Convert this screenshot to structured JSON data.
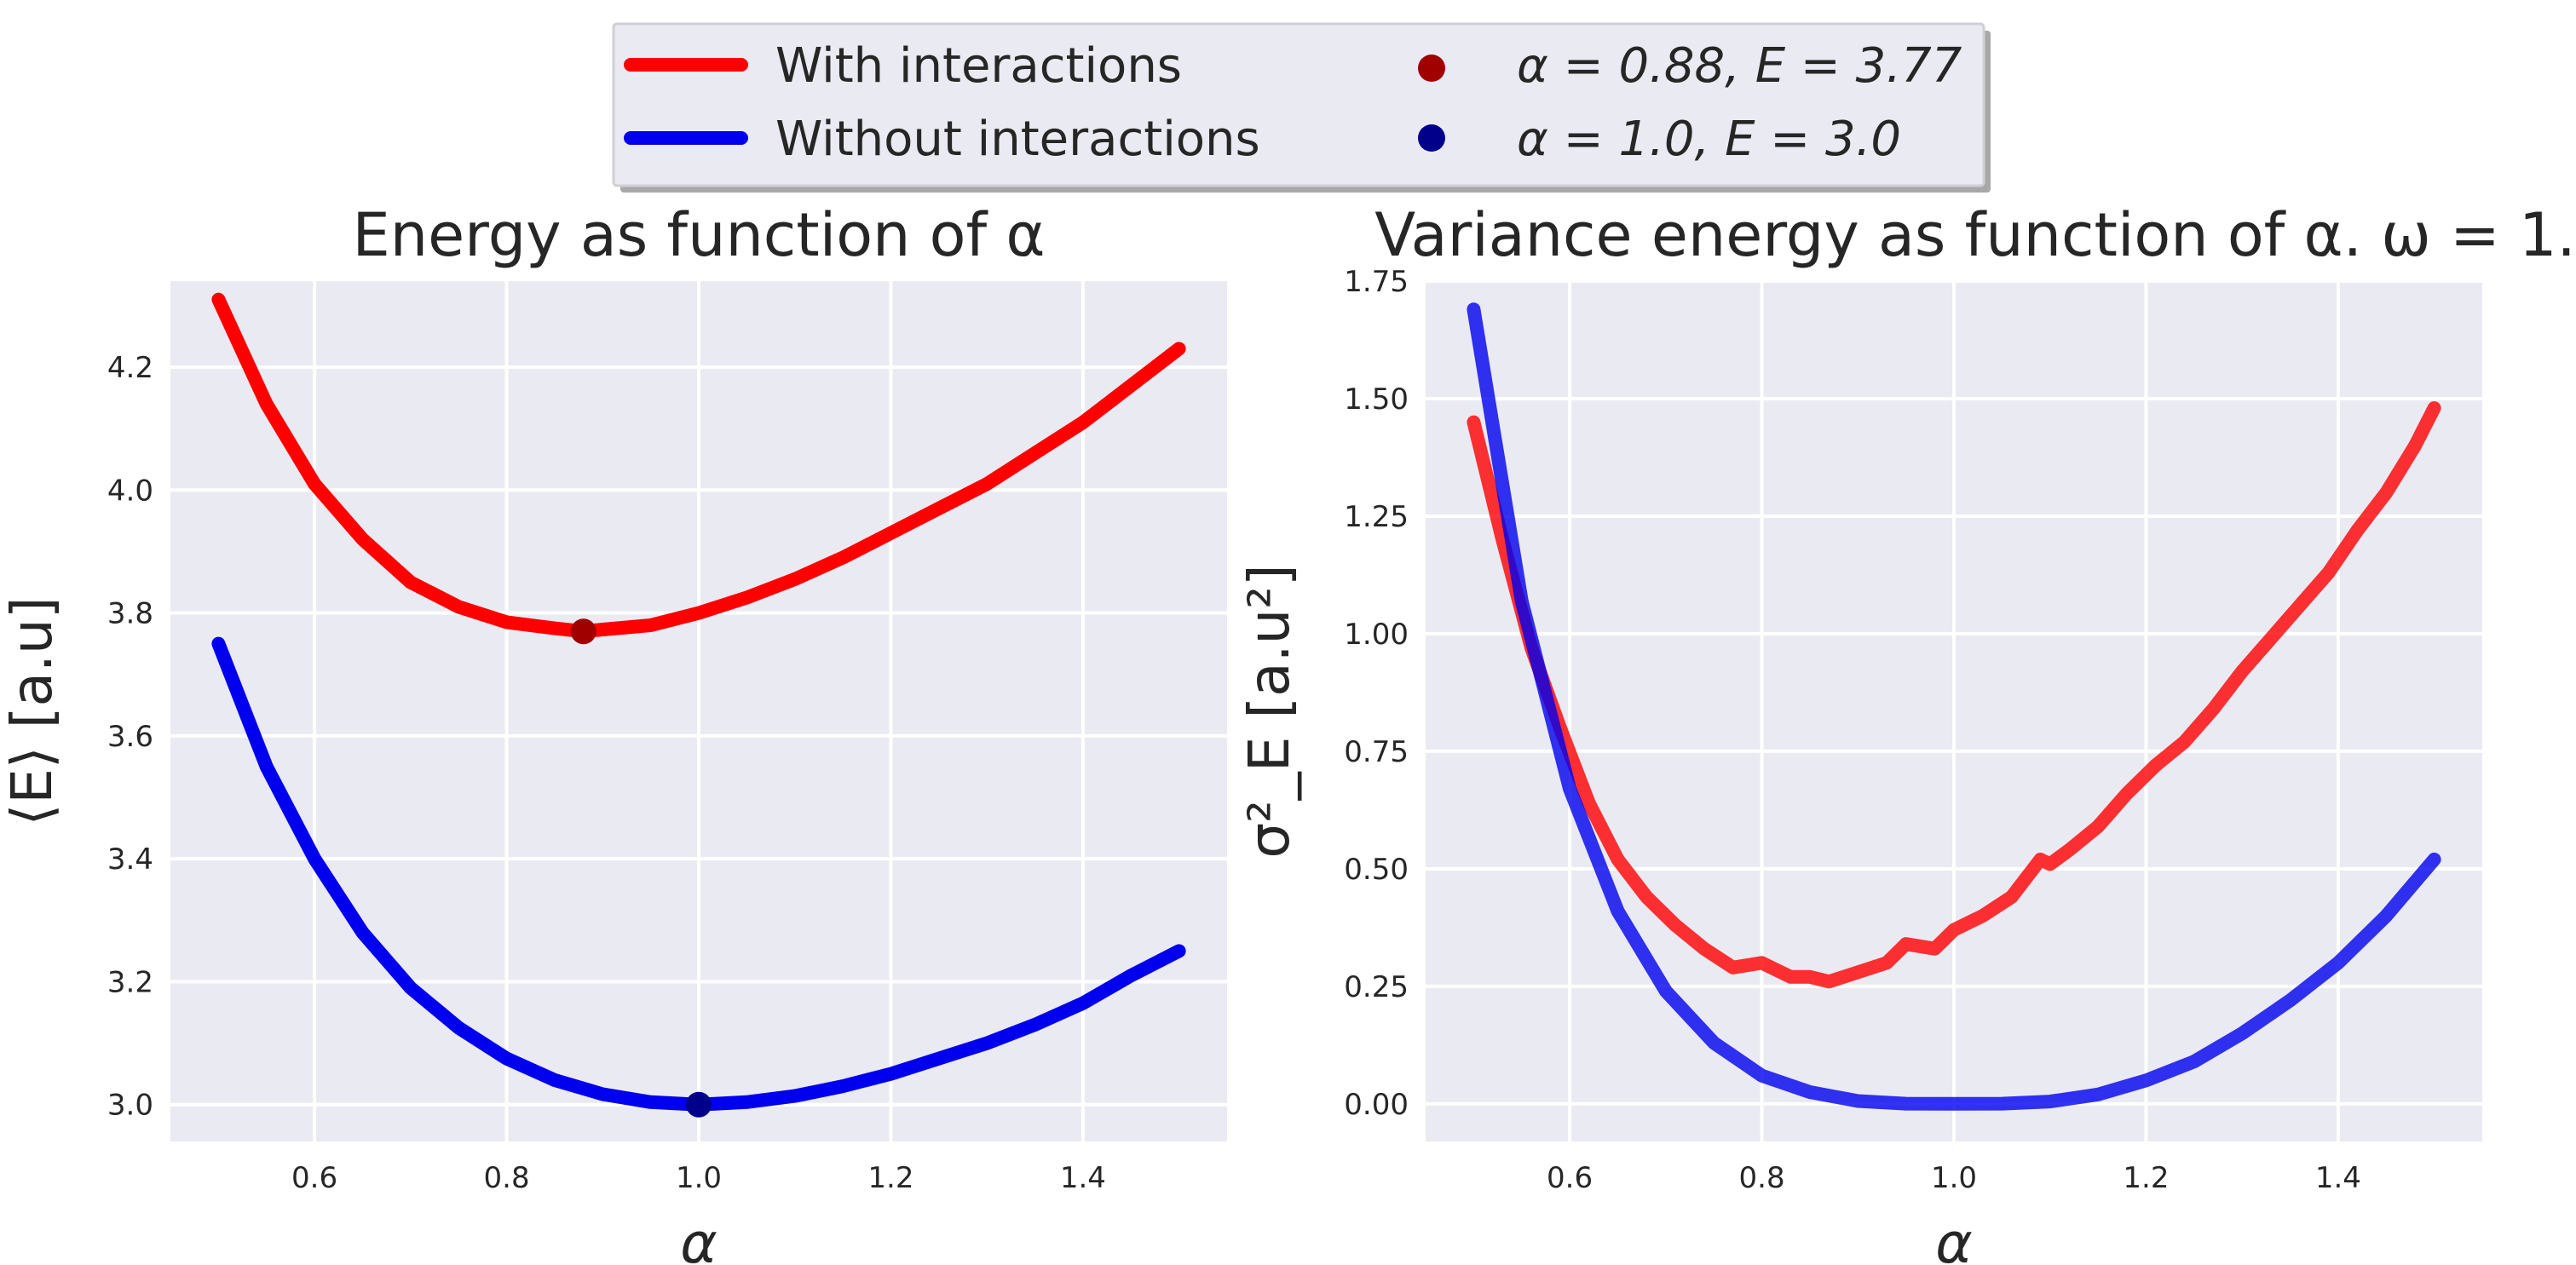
{
  "colors": {
    "with_interactions": "#ff0000",
    "without_interactions": "#0000ee",
    "min_with": "#a00000",
    "min_without": "#00008b",
    "panel_bg": "#eaeaf2",
    "grid": "#ffffff"
  },
  "legend": {
    "placement": "top-center",
    "entries": [
      {
        "label": "With interactions",
        "marker": "line",
        "color_key": "with_interactions"
      },
      {
        "label": "Without interactions",
        "marker": "line",
        "color_key": "without_interactions"
      },
      {
        "label": "α = 0.88, E = 3.77",
        "marker": "dot",
        "color_key": "min_with"
      },
      {
        "label": "α = 1.0, E = 3.0",
        "marker": "dot",
        "color_key": "min_without"
      }
    ]
  },
  "chart_data": [
    {
      "type": "line",
      "title": "Energy as function of α",
      "xlabel": "α",
      "ylabel": "⟨E⟩ [a.u]",
      "xlim": [
        0.45,
        1.55
      ],
      "ylim": [
        2.94,
        4.34
      ],
      "xticks": [
        0.6,
        0.8,
        1.0,
        1.2,
        1.4
      ],
      "xtick_labels": [
        "0.6",
        "0.8",
        "1.0",
        "1.2",
        "1.4"
      ],
      "yticks": [
        3.0,
        3.2,
        3.4,
        3.6,
        3.8,
        4.0,
        4.2
      ],
      "ytick_labels": [
        "3.0",
        "3.2",
        "3.4",
        "3.6",
        "3.8",
        "4.0",
        "4.2"
      ],
      "grid": true,
      "series": [
        {
          "name": "With interactions",
          "color_key": "with_interactions",
          "x": [
            0.5,
            0.55,
            0.6,
            0.65,
            0.7,
            0.75,
            0.8,
            0.85,
            0.88,
            0.9,
            0.95,
            1.0,
            1.05,
            1.1,
            1.15,
            1.2,
            1.25,
            1.3,
            1.35,
            1.4,
            1.45,
            1.5
          ],
          "y": [
            4.31,
            4.14,
            4.01,
            3.92,
            3.85,
            3.81,
            3.785,
            3.775,
            3.77,
            3.773,
            3.78,
            3.8,
            3.825,
            3.855,
            3.89,
            3.93,
            3.97,
            4.01,
            4.06,
            4.11,
            4.17,
            4.23
          ]
        },
        {
          "name": "Without interactions",
          "color_key": "without_interactions",
          "x": [
            0.5,
            0.55,
            0.6,
            0.65,
            0.7,
            0.75,
            0.8,
            0.85,
            0.9,
            0.95,
            1.0,
            1.05,
            1.1,
            1.15,
            1.2,
            1.25,
            1.3,
            1.35,
            1.4,
            1.45,
            1.5
          ],
          "y": [
            3.75,
            3.55,
            3.4,
            3.28,
            3.19,
            3.125,
            3.075,
            3.04,
            3.017,
            3.004,
            3.0,
            3.004,
            3.014,
            3.03,
            3.05,
            3.075,
            3.1,
            3.13,
            3.165,
            3.21,
            3.25
          ]
        }
      ],
      "points": [
        {
          "x": 0.88,
          "y": 3.77,
          "color_key": "min_with"
        },
        {
          "x": 1.0,
          "y": 3.0,
          "color_key": "min_without"
        }
      ]
    },
    {
      "type": "line",
      "title": "Variance energy as function of α. ω = 1.",
      "xlabel": "α",
      "ylabel": "σ²_E [a.u²]",
      "xlim": [
        0.45,
        1.55
      ],
      "ylim": [
        -0.08,
        1.75
      ],
      "xticks": [
        0.6,
        0.8,
        1.0,
        1.2,
        1.4
      ],
      "xtick_labels": [
        "0.6",
        "0.8",
        "1.0",
        "1.2",
        "1.4"
      ],
      "yticks": [
        0.0,
        0.25,
        0.5,
        0.75,
        1.0,
        1.25,
        1.5,
        1.75
      ],
      "ytick_labels": [
        "0.00",
        "0.25",
        "0.50",
        "0.75",
        "1.00",
        "1.25",
        "1.50",
        "1.75"
      ],
      "grid": true,
      "series": [
        {
          "name": "With interactions",
          "color_key": "with_interactions",
          "x": [
            0.5,
            0.53,
            0.56,
            0.59,
            0.62,
            0.65,
            0.68,
            0.71,
            0.74,
            0.77,
            0.8,
            0.83,
            0.85,
            0.87,
            0.9,
            0.93,
            0.95,
            0.98,
            1.0,
            1.03,
            1.06,
            1.09,
            1.1,
            1.12,
            1.15,
            1.18,
            1.21,
            1.24,
            1.27,
            1.3,
            1.33,
            1.36,
            1.39,
            1.42,
            1.45,
            1.48,
            1.5
          ],
          "y": [
            1.45,
            1.2,
            0.97,
            0.8,
            0.64,
            0.52,
            0.44,
            0.38,
            0.33,
            0.29,
            0.3,
            0.27,
            0.27,
            0.26,
            0.28,
            0.3,
            0.34,
            0.33,
            0.37,
            0.4,
            0.44,
            0.52,
            0.51,
            0.54,
            0.59,
            0.66,
            0.72,
            0.77,
            0.84,
            0.92,
            0.99,
            1.06,
            1.13,
            1.22,
            1.3,
            1.4,
            1.48
          ]
        },
        {
          "name": "Without interactions",
          "color_key": "without_interactions",
          "x": [
            0.5,
            0.55,
            0.6,
            0.65,
            0.7,
            0.75,
            0.8,
            0.85,
            0.9,
            0.95,
            1.0,
            1.05,
            1.1,
            1.15,
            1.2,
            1.25,
            1.3,
            1.35,
            1.4,
            1.45,
            1.5
          ],
          "y": [
            1.69,
            1.07,
            0.67,
            0.41,
            0.24,
            0.13,
            0.06,
            0.025,
            0.006,
            0.0005,
            0.0,
            0.0005,
            0.005,
            0.02,
            0.05,
            0.09,
            0.15,
            0.22,
            0.3,
            0.4,
            0.52
          ]
        }
      ],
      "points": []
    }
  ]
}
